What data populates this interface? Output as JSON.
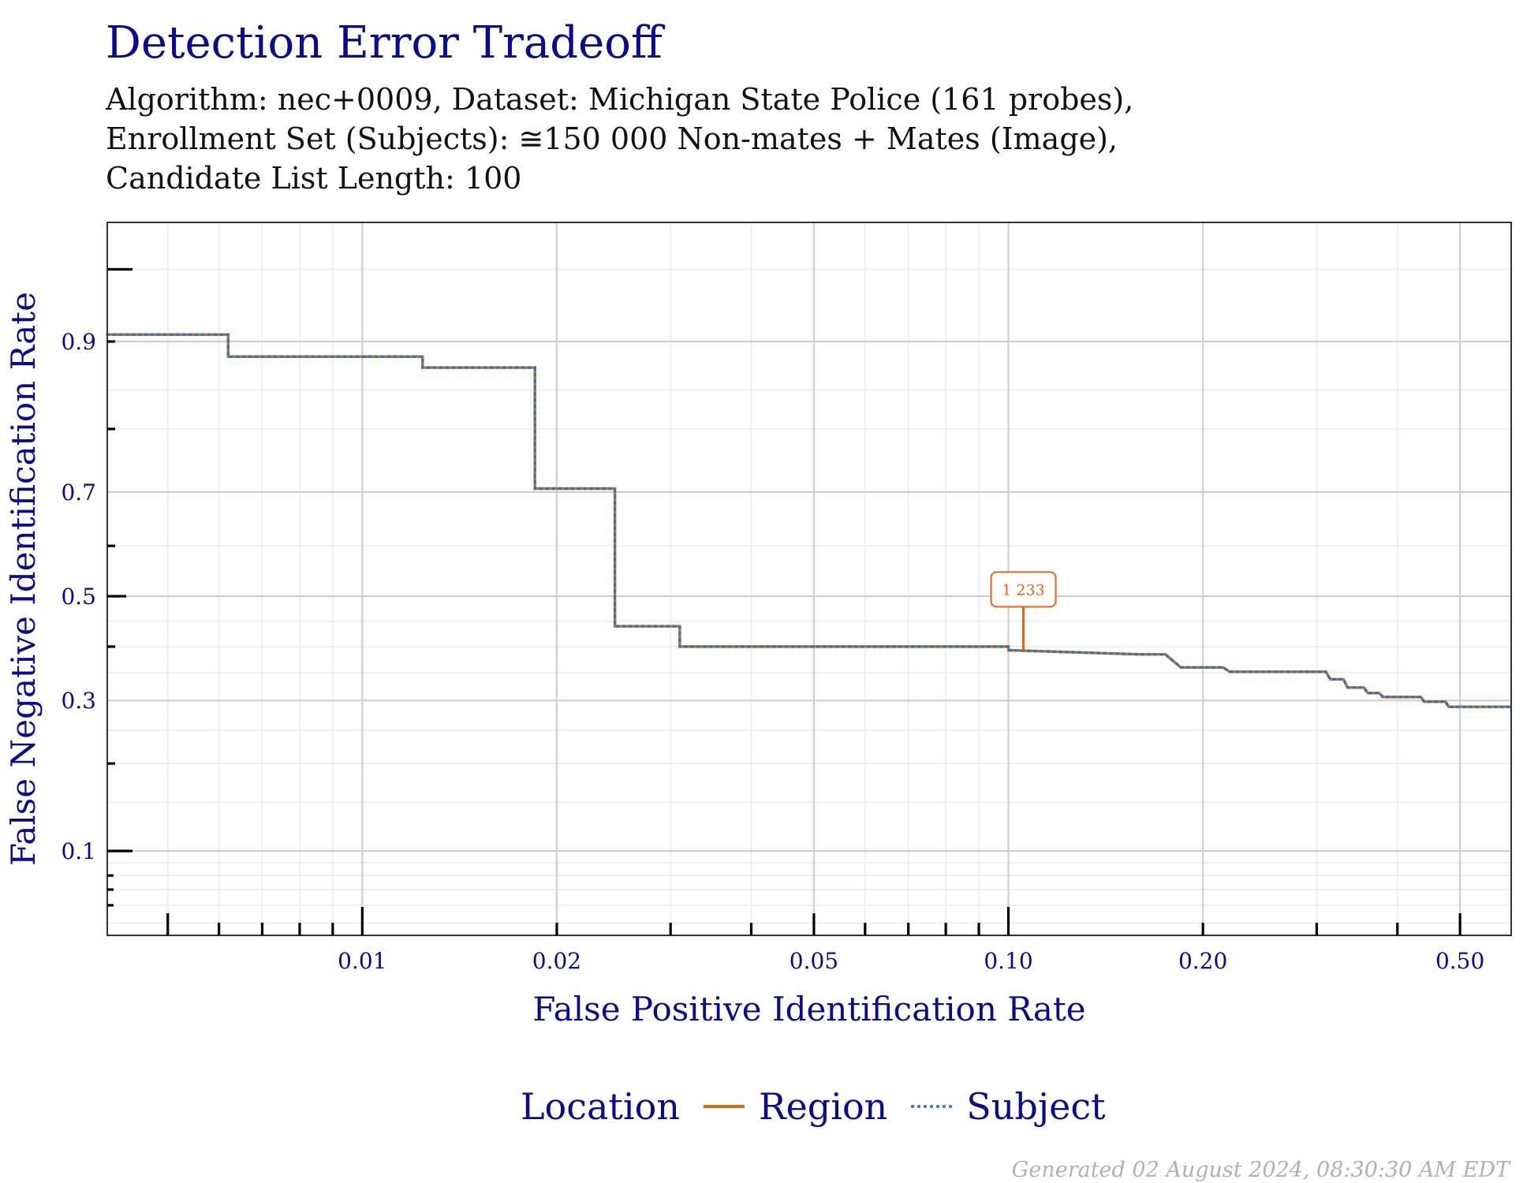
{
  "title": "Detection Error Tradeoff",
  "subtitle_lines": [
    "Algorithm: nec+0009, Dataset: Michigan State Police (161 probes),",
    "Enrollment Set (Subjects): ≅150 000 Non-mates + Mates (Image),",
    "Candidate List Length: 100"
  ],
  "footer": "Generated 02 August 2024, 08:30:30 AM EDT",
  "colors": {
    "region": "#e06516",
    "subject": "#1f7cc1",
    "text": "#0a0a8c"
  },
  "chart_data": {
    "type": "line",
    "xlabel": "False Positive Identification Rate",
    "ylabel": "False Negative Identification Rate",
    "x_scale": "log",
    "y_scale": "probit",
    "xlim": [
      0.00403,
      0.6
    ],
    "ylim": [
      0.044,
      0.97
    ],
    "x_ticks": [
      {
        "value": 0.01,
        "label": "0.01"
      },
      {
        "value": 0.02,
        "label": "0.02"
      },
      {
        "value": 0.05,
        "label": "0.05"
      },
      {
        "value": 0.1,
        "label": "0.10"
      },
      {
        "value": 0.2,
        "label": "0.20"
      },
      {
        "value": 0.5,
        "label": "0.50"
      }
    ],
    "y_ticks": [
      {
        "value": 0.1,
        "label": "0.1"
      },
      {
        "value": 0.3,
        "label": "0.3"
      },
      {
        "value": 0.5,
        "label": "0.5"
      },
      {
        "value": 0.7,
        "label": "0.7"
      },
      {
        "value": 0.9,
        "label": "0.9"
      }
    ],
    "grid": true,
    "legend": {
      "title": "Location",
      "position": "bottom"
    },
    "series": [
      {
        "name": "Region",
        "style": "solid",
        "points": [
          [
            0.00403,
            0.906
          ],
          [
            0.0062,
            0.906
          ],
          [
            0.0062,
            0.886
          ],
          [
            0.0124,
            0.886
          ],
          [
            0.0124,
            0.875
          ],
          [
            0.0185,
            0.875
          ],
          [
            0.0185,
            0.706
          ],
          [
            0.0246,
            0.706
          ],
          [
            0.0246,
            0.44
          ],
          [
            0.031,
            0.44
          ],
          [
            0.031,
            0.4
          ],
          [
            0.1,
            0.4
          ],
          [
            0.1,
            0.393
          ],
          [
            0.16,
            0.385
          ],
          [
            0.175,
            0.385
          ],
          [
            0.18,
            0.372
          ],
          [
            0.185,
            0.36
          ],
          [
            0.215,
            0.36
          ],
          [
            0.22,
            0.352
          ],
          [
            0.31,
            0.352
          ],
          [
            0.315,
            0.338
          ],
          [
            0.33,
            0.338
          ],
          [
            0.335,
            0.323
          ],
          [
            0.355,
            0.323
          ],
          [
            0.36,
            0.313
          ],
          [
            0.375,
            0.313
          ],
          [
            0.38,
            0.306
          ],
          [
            0.435,
            0.306
          ],
          [
            0.44,
            0.298
          ],
          [
            0.475,
            0.298
          ],
          [
            0.48,
            0.289
          ],
          [
            0.6,
            0.289
          ]
        ]
      },
      {
        "name": "Subject",
        "style": "dotted",
        "points": [
          [
            0.00403,
            0.906
          ],
          [
            0.0062,
            0.906
          ],
          [
            0.0062,
            0.886
          ],
          [
            0.0124,
            0.886
          ],
          [
            0.0124,
            0.875
          ],
          [
            0.0185,
            0.875
          ],
          [
            0.0185,
            0.706
          ],
          [
            0.0246,
            0.706
          ],
          [
            0.0246,
            0.44
          ],
          [
            0.031,
            0.44
          ],
          [
            0.031,
            0.4
          ],
          [
            0.1,
            0.4
          ],
          [
            0.1,
            0.393
          ],
          [
            0.16,
            0.385
          ],
          [
            0.175,
            0.385
          ],
          [
            0.18,
            0.372
          ],
          [
            0.185,
            0.36
          ],
          [
            0.215,
            0.36
          ],
          [
            0.22,
            0.352
          ],
          [
            0.31,
            0.352
          ],
          [
            0.315,
            0.338
          ],
          [
            0.33,
            0.338
          ],
          [
            0.335,
            0.323
          ],
          [
            0.355,
            0.323
          ],
          [
            0.36,
            0.313
          ],
          [
            0.375,
            0.313
          ],
          [
            0.38,
            0.306
          ],
          [
            0.435,
            0.306
          ],
          [
            0.44,
            0.298
          ],
          [
            0.475,
            0.298
          ],
          [
            0.48,
            0.289
          ],
          [
            0.6,
            0.289
          ]
        ]
      }
    ],
    "annotations": [
      {
        "text": "1 233",
        "x": 0.1055,
        "y": 0.393,
        "label_y": 0.52,
        "color": "#e06516"
      }
    ]
  }
}
